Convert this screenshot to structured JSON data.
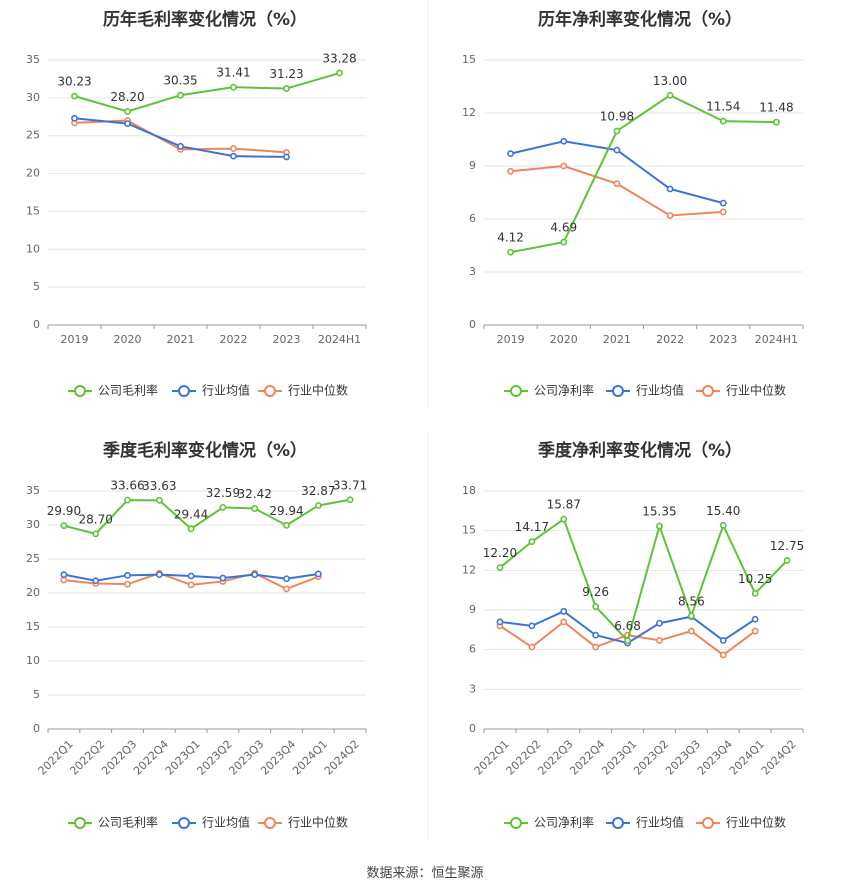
{
  "footer": {
    "source": "数据来源：恒生聚源"
  },
  "colors": {
    "company": "#5cc437",
    "industry_avg": "#3c73d7",
    "industry_median": "#f0845c"
  },
  "chart_data": [
    {
      "type": "line",
      "title": "历年毛利率变化情况（%）",
      "categories": [
        "2019",
        "2020",
        "2021",
        "2022",
        "2023",
        "2024H1"
      ],
      "ylim": [
        0,
        35
      ],
      "yticks": [
        0,
        5,
        10,
        15,
        20,
        25,
        30,
        35
      ],
      "grid": true,
      "legend_position": "bottom",
      "series": [
        {
          "name": "公司毛利率",
          "values": [
            30.23,
            28.2,
            30.35,
            31.41,
            31.23,
            33.28
          ],
          "labels": [
            "30.23",
            "28.20",
            "30.35",
            "31.41",
            "31.23",
            "33.28"
          ]
        },
        {
          "name": "行业均值",
          "values": [
            27.3,
            26.6,
            23.6,
            22.3,
            22.2,
            null
          ]
        },
        {
          "name": "行业中位数",
          "values": [
            26.7,
            27.0,
            23.2,
            23.3,
            22.8,
            null
          ]
        }
      ]
    },
    {
      "type": "line",
      "title": "历年净利率变化情况（%）",
      "categories": [
        "2019",
        "2020",
        "2021",
        "2022",
        "2023",
        "2024H1"
      ],
      "ylim": [
        0,
        15
      ],
      "yticks": [
        0,
        3,
        6,
        9,
        12,
        15
      ],
      "grid": true,
      "legend_position": "bottom",
      "series": [
        {
          "name": "公司净利率",
          "values": [
            4.12,
            4.69,
            10.98,
            13.0,
            11.54,
            11.48
          ],
          "labels": [
            "4.12",
            "4.69",
            "10.98",
            "13.00",
            "11.54",
            "11.48"
          ]
        },
        {
          "name": "行业均值",
          "values": [
            9.7,
            10.4,
            9.9,
            7.7,
            6.9,
            null
          ]
        },
        {
          "name": "行业中位数",
          "values": [
            8.7,
            9.0,
            8.0,
            6.2,
            6.4,
            null
          ]
        }
      ]
    },
    {
      "type": "line",
      "title": "季度毛利率变化情况（%）",
      "categories": [
        "2022Q1",
        "2022Q2",
        "2022Q3",
        "2022Q4",
        "2023Q1",
        "2023Q2",
        "2023Q3",
        "2023Q4",
        "2024Q1",
        "2024Q2"
      ],
      "ylim": [
        0,
        35
      ],
      "yticks": [
        0,
        5,
        10,
        15,
        20,
        25,
        30,
        35
      ],
      "grid": true,
      "legend_position": "bottom",
      "series": [
        {
          "name": "公司毛利率",
          "values": [
            29.9,
            28.7,
            33.66,
            33.63,
            29.44,
            32.59,
            32.42,
            29.94,
            32.87,
            33.71
          ],
          "labels": [
            "29.90",
            "28.70",
            "33.66",
            "33.63",
            "29.44",
            "32.59",
            "32.42",
            "29.94",
            "32.87",
            "33.71"
          ]
        },
        {
          "name": "行业均值",
          "values": [
            22.7,
            21.8,
            22.6,
            22.7,
            22.5,
            22.2,
            22.7,
            22.1,
            22.8,
            null
          ]
        },
        {
          "name": "行业中位数",
          "values": [
            21.9,
            21.4,
            21.3,
            22.9,
            21.2,
            21.7,
            22.9,
            20.6,
            22.4,
            null
          ]
        }
      ]
    },
    {
      "type": "line",
      "title": "季度净利率变化情况（%）",
      "categories": [
        "2022Q1",
        "2022Q2",
        "2022Q3",
        "2022Q4",
        "2023Q1",
        "2023Q2",
        "2023Q3",
        "2023Q4",
        "2024Q1",
        "2024Q2"
      ],
      "ylim": [
        0,
        18
      ],
      "yticks": [
        0,
        3,
        6,
        9,
        12,
        15,
        18
      ],
      "grid": true,
      "legend_position": "bottom",
      "series": [
        {
          "name": "公司净利率",
          "values": [
            12.2,
            14.17,
            15.87,
            9.26,
            6.68,
            15.35,
            8.56,
            15.4,
            10.25,
            12.75
          ],
          "labels": [
            "12.20",
            "14.17",
            "15.87",
            "9.26",
            "6.68",
            "15.35",
            "8.56",
            "15.40",
            "10.25",
            "12.75"
          ]
        },
        {
          "name": "行业均值",
          "values": [
            8.1,
            7.8,
            8.9,
            7.1,
            6.5,
            8.0,
            8.5,
            6.7,
            8.3,
            null
          ]
        },
        {
          "name": "行业中位数",
          "values": [
            7.8,
            6.2,
            8.1,
            6.2,
            7.1,
            6.7,
            7.4,
            5.6,
            7.4,
            null
          ]
        }
      ]
    }
  ]
}
